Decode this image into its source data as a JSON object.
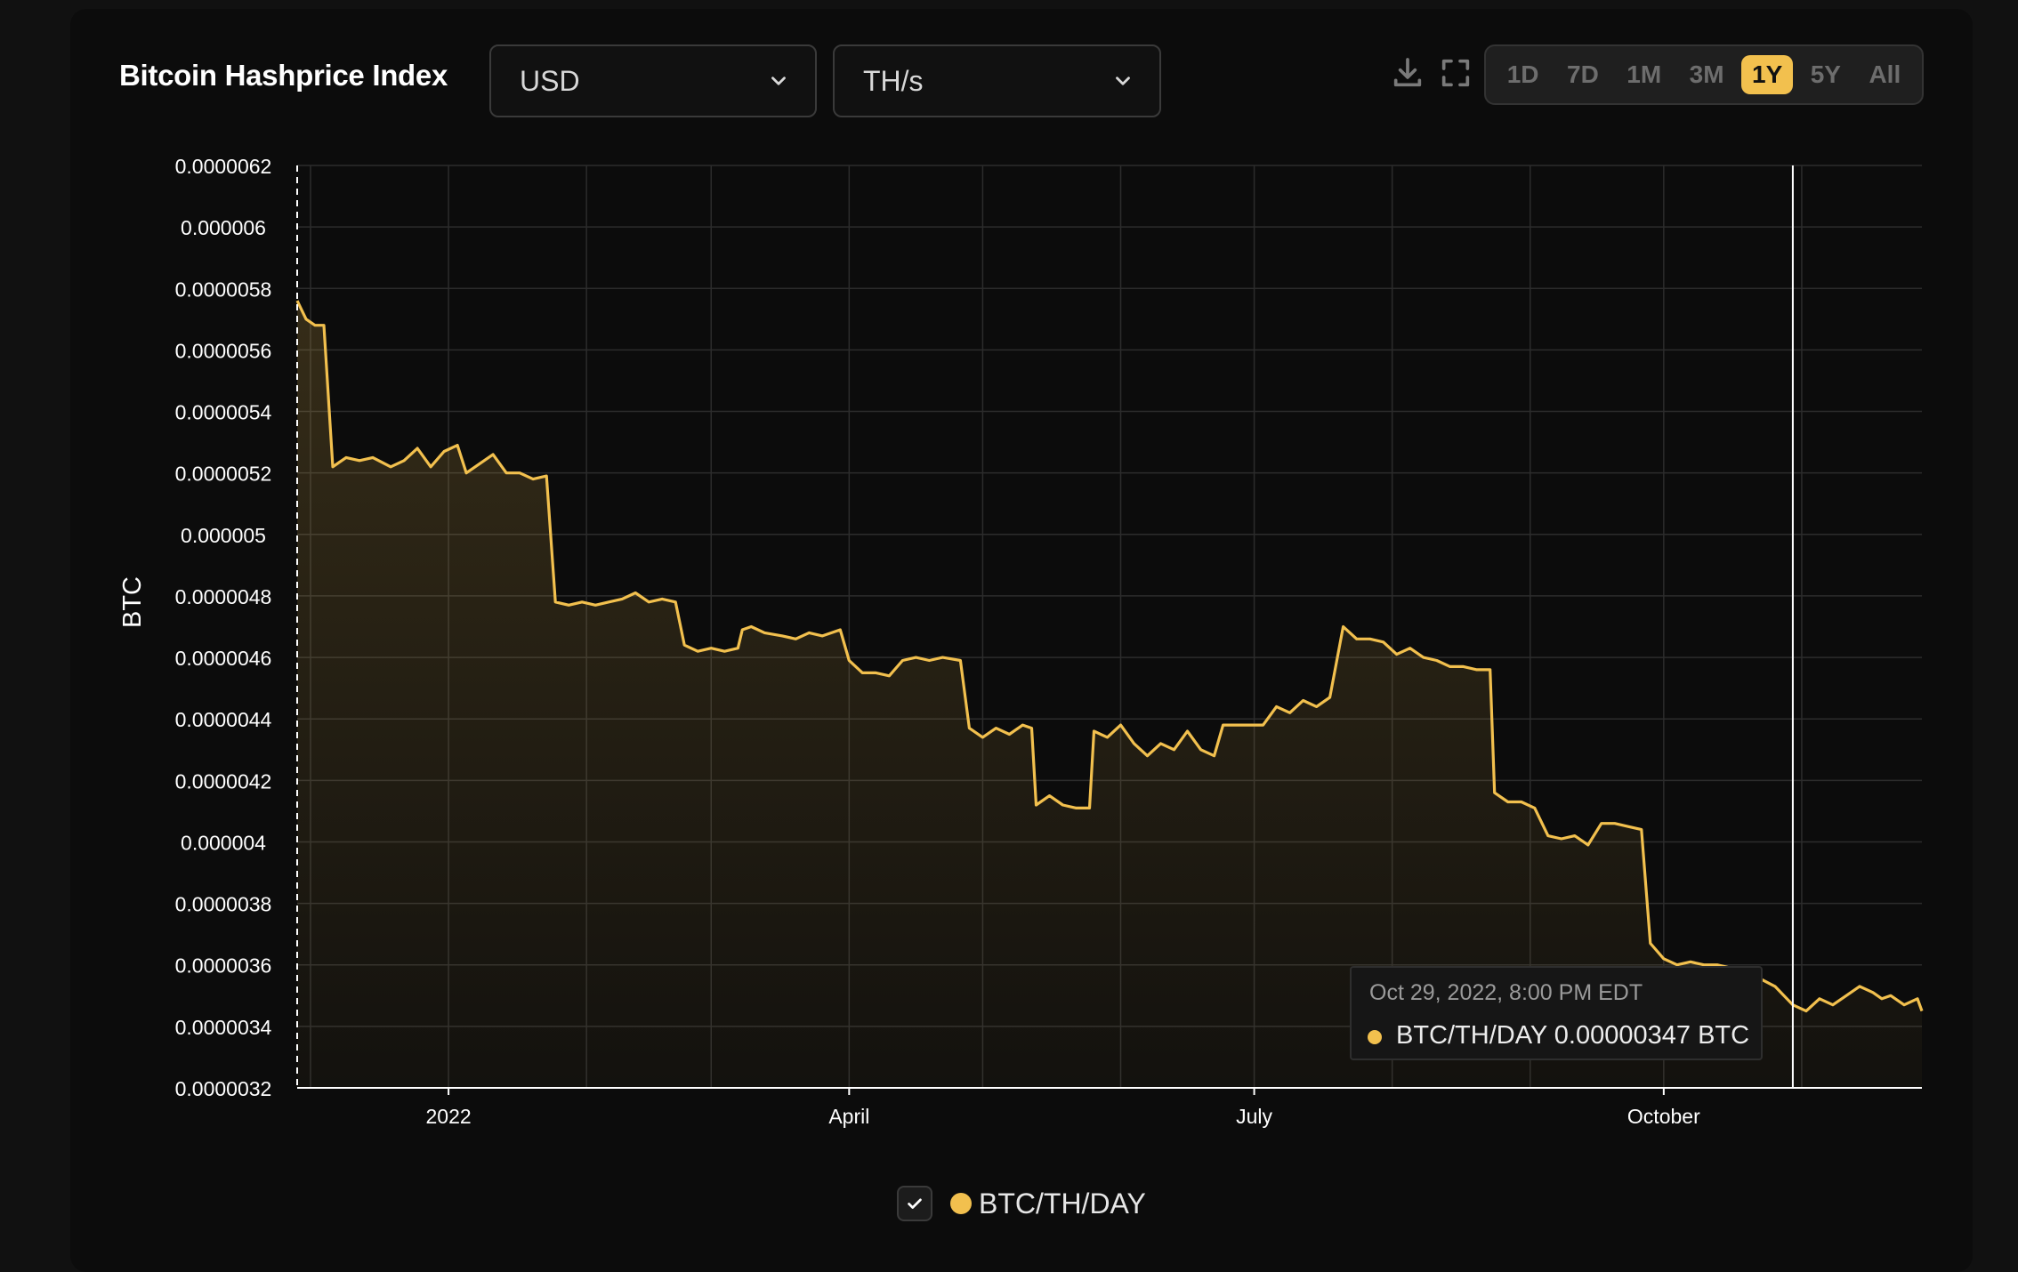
{
  "header": {
    "title": "Bitcoin Hashprice Index",
    "currency_select": "USD",
    "unit_select": "TH/s",
    "download_icon": "download-icon",
    "fullscreen_icon": "fullscreen-icon",
    "ranges": [
      "1D",
      "7D",
      "1M",
      "3M",
      "1Y",
      "5Y",
      "All"
    ],
    "active_range": "1Y"
  },
  "colors": {
    "accent": "#f2c04e",
    "background": "#0c0c0c",
    "grid": "#2c2c2c"
  },
  "tooltip": {
    "date": "Oct 29, 2022, 8:00 PM EDT",
    "series": "BTC/TH/DAY",
    "value": "0.00000347 BTC"
  },
  "legend": {
    "label": "BTC/TH/DAY",
    "checked": true
  },
  "chart_data": {
    "type": "area",
    "title": "",
    "xlabel": "",
    "ylabel": "BTC",
    "ylim": [
      3.2e-06,
      6.2e-06
    ],
    "ytick_labels": [
      "0.0000062",
      "0.000006",
      "0.0000058",
      "0.0000056",
      "0.0000054",
      "0.0000052",
      "0.000005",
      "0.0000048",
      "0.0000046",
      "0.0000044",
      "0.0000042",
      "0.000004",
      "0.0000038",
      "0.0000036",
      "0.0000034",
      "0.0000032"
    ],
    "xlim": [
      "2021-11-28",
      "2022-11-28"
    ],
    "xtick_labels": [
      {
        "date": "2022-01-01",
        "label": "2022"
      },
      {
        "date": "2022-04-01",
        "label": "April"
      },
      {
        "date": "2022-07-01",
        "label": "July"
      },
      {
        "date": "2022-10-01",
        "label": "October"
      }
    ],
    "crosshair_date": "2022-10-30",
    "grid": true,
    "legend_position": "bottom-center",
    "series": [
      {
        "name": "BTC/TH/DAY",
        "color": "#f2c04e",
        "points": [
          [
            "2021-11-28",
            5.76e-06
          ],
          [
            "2021-11-30",
            5.7e-06
          ],
          [
            "2021-12-02",
            5.68e-06
          ],
          [
            "2021-12-04",
            5.68e-06
          ],
          [
            "2021-12-06",
            5.22e-06
          ],
          [
            "2021-12-09",
            5.25e-06
          ],
          [
            "2021-12-12",
            5.24e-06
          ],
          [
            "2021-12-15",
            5.25e-06
          ],
          [
            "2021-12-19",
            5.22e-06
          ],
          [
            "2021-12-22",
            5.24e-06
          ],
          [
            "2021-12-25",
            5.28e-06
          ],
          [
            "2021-12-28",
            5.22e-06
          ],
          [
            "2021-12-31",
            5.27e-06
          ],
          [
            "2022-01-03",
            5.29e-06
          ],
          [
            "2022-01-05",
            5.2e-06
          ],
          [
            "2022-01-08",
            5.23e-06
          ],
          [
            "2022-01-11",
            5.26e-06
          ],
          [
            "2022-01-14",
            5.2e-06
          ],
          [
            "2022-01-17",
            5.2e-06
          ],
          [
            "2022-01-20",
            5.18e-06
          ],
          [
            "2022-01-23",
            5.19e-06
          ],
          [
            "2022-01-25",
            4.78e-06
          ],
          [
            "2022-01-28",
            4.77e-06
          ],
          [
            "2022-01-31",
            4.78e-06
          ],
          [
            "2022-02-03",
            4.77e-06
          ],
          [
            "2022-02-06",
            4.78e-06
          ],
          [
            "2022-02-09",
            4.79e-06
          ],
          [
            "2022-02-12",
            4.81e-06
          ],
          [
            "2022-02-15",
            4.78e-06
          ],
          [
            "2022-02-18",
            4.79e-06
          ],
          [
            "2022-02-21",
            4.78e-06
          ],
          [
            "2022-02-23",
            4.64e-06
          ],
          [
            "2022-02-26",
            4.62e-06
          ],
          [
            "2022-03-01",
            4.63e-06
          ],
          [
            "2022-03-04",
            4.62e-06
          ],
          [
            "2022-03-07",
            4.63e-06
          ],
          [
            "2022-03-08",
            4.69e-06
          ],
          [
            "2022-03-10",
            4.7e-06
          ],
          [
            "2022-03-13",
            4.68e-06
          ],
          [
            "2022-03-17",
            4.67e-06
          ],
          [
            "2022-03-20",
            4.66e-06
          ],
          [
            "2022-03-23",
            4.68e-06
          ],
          [
            "2022-03-26",
            4.67e-06
          ],
          [
            "2022-03-30",
            4.69e-06
          ],
          [
            "2022-04-01",
            4.59e-06
          ],
          [
            "2022-04-04",
            4.55e-06
          ],
          [
            "2022-04-07",
            4.55e-06
          ],
          [
            "2022-04-10",
            4.54e-06
          ],
          [
            "2022-04-13",
            4.59e-06
          ],
          [
            "2022-04-16",
            4.6e-06
          ],
          [
            "2022-04-19",
            4.59e-06
          ],
          [
            "2022-04-22",
            4.6e-06
          ],
          [
            "2022-04-26",
            4.59e-06
          ],
          [
            "2022-04-28",
            4.37e-06
          ],
          [
            "2022-05-01",
            4.34e-06
          ],
          [
            "2022-05-04",
            4.37e-06
          ],
          [
            "2022-05-07",
            4.35e-06
          ],
          [
            "2022-05-10",
            4.38e-06
          ],
          [
            "2022-05-12",
            4.37e-06
          ],
          [
            "2022-05-13",
            4.12e-06
          ],
          [
            "2022-05-16",
            4.15e-06
          ],
          [
            "2022-05-19",
            4.12e-06
          ],
          [
            "2022-05-22",
            4.11e-06
          ],
          [
            "2022-05-25",
            4.11e-06
          ],
          [
            "2022-05-26",
            4.36e-06
          ],
          [
            "2022-05-29",
            4.34e-06
          ],
          [
            "2022-06-01",
            4.38e-06
          ],
          [
            "2022-06-04",
            4.32e-06
          ],
          [
            "2022-06-07",
            4.28e-06
          ],
          [
            "2022-06-10",
            4.32e-06
          ],
          [
            "2022-06-13",
            4.3e-06
          ],
          [
            "2022-06-16",
            4.36e-06
          ],
          [
            "2022-06-19",
            4.3e-06
          ],
          [
            "2022-06-22",
            4.28e-06
          ],
          [
            "2022-06-24",
            4.38e-06
          ],
          [
            "2022-06-27",
            4.38e-06
          ],
          [
            "2022-06-30",
            4.38e-06
          ],
          [
            "2022-07-03",
            4.38e-06
          ],
          [
            "2022-07-06",
            4.44e-06
          ],
          [
            "2022-07-09",
            4.42e-06
          ],
          [
            "2022-07-12",
            4.46e-06
          ],
          [
            "2022-07-15",
            4.44e-06
          ],
          [
            "2022-07-18",
            4.47e-06
          ],
          [
            "2022-07-21",
            4.7e-06
          ],
          [
            "2022-07-24",
            4.66e-06
          ],
          [
            "2022-07-27",
            4.66e-06
          ],
          [
            "2022-07-30",
            4.65e-06
          ],
          [
            "2022-08-02",
            4.61e-06
          ],
          [
            "2022-08-05",
            4.63e-06
          ],
          [
            "2022-08-08",
            4.6e-06
          ],
          [
            "2022-08-11",
            4.59e-06
          ],
          [
            "2022-08-14",
            4.57e-06
          ],
          [
            "2022-08-17",
            4.57e-06
          ],
          [
            "2022-08-20",
            4.56e-06
          ],
          [
            "2022-08-23",
            4.56e-06
          ],
          [
            "2022-08-24",
            4.16e-06
          ],
          [
            "2022-08-27",
            4.13e-06
          ],
          [
            "2022-08-30",
            4.13e-06
          ],
          [
            "2022-09-02",
            4.11e-06
          ],
          [
            "2022-09-05",
            4.02e-06
          ],
          [
            "2022-09-08",
            4.01e-06
          ],
          [
            "2022-09-11",
            4.02e-06
          ],
          [
            "2022-09-14",
            3.99e-06
          ],
          [
            "2022-09-17",
            4.06e-06
          ],
          [
            "2022-09-20",
            4.06e-06
          ],
          [
            "2022-09-23",
            4.05e-06
          ],
          [
            "2022-09-26",
            4.04e-06
          ],
          [
            "2022-09-28",
            3.67e-06
          ],
          [
            "2022-10-01",
            3.62e-06
          ],
          [
            "2022-10-04",
            3.6e-06
          ],
          [
            "2022-10-07",
            3.61e-06
          ],
          [
            "2022-10-10",
            3.6e-06
          ],
          [
            "2022-10-13",
            3.6e-06
          ],
          [
            "2022-10-16",
            3.59e-06
          ],
          [
            "2022-10-19",
            3.58e-06
          ],
          [
            "2022-10-22",
            3.56e-06
          ],
          [
            "2022-10-26",
            3.53e-06
          ],
          [
            "2022-10-30",
            3.47e-06
          ],
          [
            "2022-11-02",
            3.45e-06
          ],
          [
            "2022-11-05",
            3.49e-06
          ],
          [
            "2022-11-08",
            3.47e-06
          ],
          [
            "2022-11-11",
            3.5e-06
          ],
          [
            "2022-11-14",
            3.53e-06
          ],
          [
            "2022-11-17",
            3.51e-06
          ],
          [
            "2022-11-19",
            3.49e-06
          ],
          [
            "2022-11-21",
            3.5e-06
          ],
          [
            "2022-11-24",
            3.47e-06
          ],
          [
            "2022-11-27",
            3.49e-06
          ],
          [
            "2022-11-28",
            3.45e-06
          ]
        ]
      }
    ]
  }
}
